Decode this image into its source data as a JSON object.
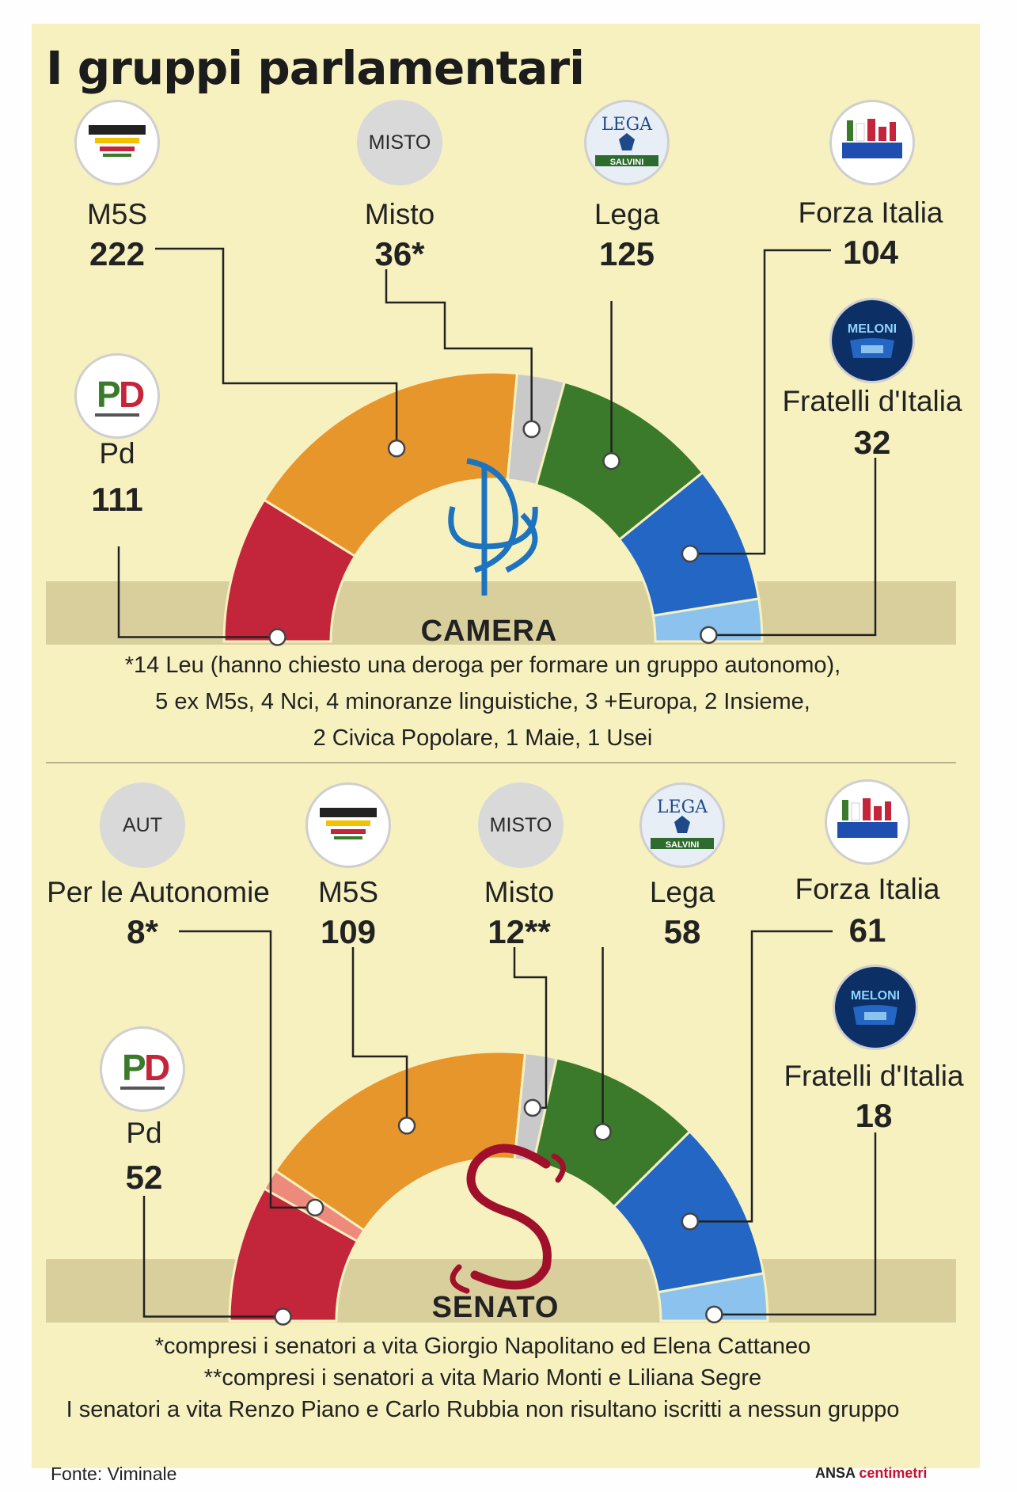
{
  "title": "I gruppi parlamentari",
  "colors": {
    "pd": "#c3263a",
    "m5s": "#e7962c",
    "misto": "#c9c9c9",
    "aut": "#ee8a7c",
    "lega": "#3b7a2a",
    "forza_italia": "#2466c4",
    "fratelli_italia": "#8cc3ee",
    "background": "#f7f1c0",
    "band": "#d8cf9d"
  },
  "camera": {
    "name": "CAMERA",
    "logo_icon": "camera-emblem-icon",
    "parties": [
      {
        "key": "pd",
        "label": "Pd",
        "count": "111",
        "logo": "pd-logo-icon"
      },
      {
        "key": "m5s",
        "label": "M5S",
        "count": "222",
        "logo": "m5s-logo-icon"
      },
      {
        "key": "misto",
        "label": "Misto",
        "count": "36*",
        "logo": "MISTO"
      },
      {
        "key": "lega",
        "label": "Lega",
        "count": "125",
        "logo": "lega-logo-icon"
      },
      {
        "key": "forza_italia",
        "label": "Forza Italia",
        "count": "104",
        "logo": "forza-italia-logo-icon"
      },
      {
        "key": "fratelli_italia",
        "label": "Fratelli d'Italia",
        "count": "32",
        "logo": "fratelli-italia-logo-icon"
      }
    ],
    "note_lines": [
      "*14 Leu (hanno chiesto una deroga per formare un gruppo autonomo),",
      "5 ex M5s, 4 Nci, 4 minoranze linguistiche, 3 +Europa, 2 Insieme,",
      "2 Civica Popolare, 1 Maie, 1 Usei"
    ]
  },
  "senato": {
    "name": "SENATO",
    "logo_icon": "senato-emblem-icon",
    "parties": [
      {
        "key": "pd",
        "label": "Pd",
        "count": "52",
        "logo": "pd-logo-icon"
      },
      {
        "key": "aut",
        "label": "Per le Autonomie",
        "count": "8*",
        "logo": "AUT"
      },
      {
        "key": "m5s",
        "label": "M5S",
        "count": "109",
        "logo": "m5s-logo-icon"
      },
      {
        "key": "misto",
        "label": "Misto",
        "count": "12**",
        "logo": "MISTO"
      },
      {
        "key": "lega",
        "label": "Lega",
        "count": "58",
        "logo": "lega-logo-icon"
      },
      {
        "key": "forza_italia",
        "label": "Forza Italia",
        "count": "61",
        "logo": "forza-italia-logo-icon"
      },
      {
        "key": "fratelli_italia",
        "label": "Fratelli d'Italia",
        "count": "18",
        "logo": "fratelli-italia-logo-icon"
      }
    ],
    "note_lines": [
      "*compresi i senatori a vita Giorgio Napolitano ed Elena Cattaneo",
      "**compresi i senatori a vita Mario Monti e Liliana Segre",
      "I senatori a vita Renzo Piano e Carlo Rubbia non risultano iscritti a nessun gruppo"
    ]
  },
  "source": "Fonte: Viminale",
  "brand": {
    "ansa": "ANSA",
    "centimetri": "centimetri"
  },
  "chart_data": [
    {
      "type": "pie",
      "title": "CAMERA",
      "categories": [
        "Pd",
        "M5S",
        "Misto",
        "Lega",
        "Forza Italia",
        "Fratelli d'Italia"
      ],
      "values": [
        111,
        222,
        36,
        125,
        104,
        32
      ],
      "note": "semicircle (hemicycle) chart"
    },
    {
      "type": "pie",
      "title": "SENATO",
      "categories": [
        "Pd",
        "Per le Autonomie",
        "M5S",
        "Misto",
        "Lega",
        "Forza Italia",
        "Fratelli d'Italia"
      ],
      "values": [
        52,
        8,
        109,
        12,
        58,
        61,
        18
      ],
      "note": "semicircle (hemicycle) chart"
    }
  ]
}
